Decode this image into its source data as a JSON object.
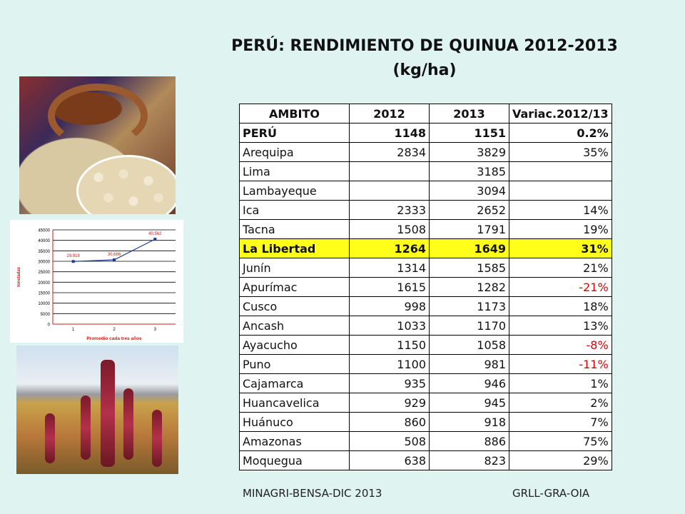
{
  "title": {
    "line1": "PERÚ: RENDIMIENTO DE QUINUA 2012-2013",
    "line2": "(kg/ha)"
  },
  "table": {
    "headers": [
      "AMBITO",
      "2012",
      "2013",
      "Variac.2012/13"
    ],
    "rows": [
      {
        "ambito": "PERÚ",
        "y2012": "1148",
        "y2013": "1151",
        "var": "0.2%",
        "style": "bold"
      },
      {
        "ambito": "Arequipa",
        "y2012": "2834",
        "y2013": "3829",
        "var": "35%"
      },
      {
        "ambito": "Lima",
        "y2012": "",
        "y2013": "3185",
        "var": ""
      },
      {
        "ambito": "Lambayeque",
        "y2012": "",
        "y2013": "3094",
        "var": ""
      },
      {
        "ambito": "Ica",
        "y2012": "2333",
        "y2013": "2652",
        "var": "14%"
      },
      {
        "ambito": "Tacna",
        "y2012": "1508",
        "y2013": "1791",
        "var": "19%"
      },
      {
        "ambito": "La Libertad",
        "y2012": "1264",
        "y2013": "1649",
        "var": "31%",
        "style": "highlight"
      },
      {
        "ambito": "Junín",
        "y2012": "1314",
        "y2013": "1585",
        "var": "21%"
      },
      {
        "ambito": "Apurímac",
        "y2012": "1615",
        "y2013": "1282",
        "var": "-21%",
        "negative": true
      },
      {
        "ambito": "Cusco",
        "y2012": "998",
        "y2013": "1173",
        "var": "18%"
      },
      {
        "ambito": "Ancash",
        "y2012": "1033",
        "y2013": "1170",
        "var": "13%"
      },
      {
        "ambito": "Ayacucho",
        "y2012": "1150",
        "y2013": "1058",
        "var": "-8%",
        "negative": true
      },
      {
        "ambito": "Puno",
        "y2012": "1100",
        "y2013": "981",
        "var": "-11%",
        "negative": true
      },
      {
        "ambito": "Cajamarca",
        "y2012": "935",
        "y2013": "946",
        "var": "1%"
      },
      {
        "ambito": "Huancavelica",
        "y2012": "929",
        "y2013": "945",
        "var": "2%"
      },
      {
        "ambito": "Huánuco",
        "y2012": "860",
        "y2013": "918",
        "var": "7%"
      },
      {
        "ambito": "Amazonas",
        "y2012": "508",
        "y2013": "886",
        "var": "75%"
      },
      {
        "ambito": "Moquegua",
        "y2012": "638",
        "y2013": "823",
        "var": "29%"
      }
    ]
  },
  "footer": {
    "left": "MINAGRI-BENSA-DIC 2013",
    "right": "GRLL-GRA-OIA"
  },
  "chart_data": {
    "type": "line",
    "x": [
      1,
      2,
      3
    ],
    "values": [
      29918,
      30686,
      40562
    ],
    "point_labels": [
      "29,918",
      "30,686",
      "40,562"
    ],
    "xlabel": "Promedio cada tres años",
    "ylabel": "toneladas",
    "yticks": [
      "0",
      "5000",
      "10000",
      "15000",
      "20000",
      "25000",
      "30000",
      "35000",
      "40000",
      "45000"
    ],
    "ylim": [
      0,
      45000
    ],
    "grid": true,
    "colors": {
      "line": "#1f3a93",
      "labels": "#d11a1a",
      "axis": "#d11a1a"
    }
  },
  "images": {
    "top_photo": "quinoa-grain-bowl",
    "bottom_photo": "quinoa-field"
  }
}
